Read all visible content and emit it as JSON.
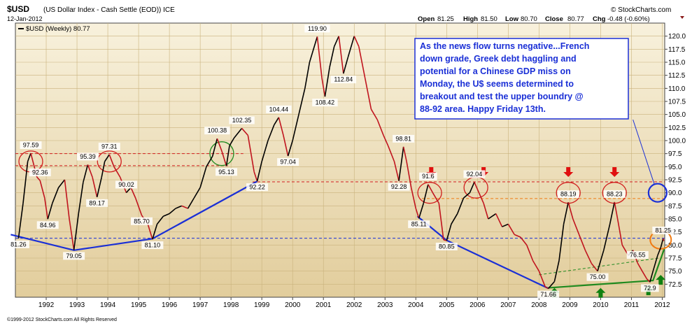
{
  "header": {
    "symbol": "$USD",
    "description": "(US Dollar Index - Cash Settle (EOD)) ICE",
    "date": "12-Jan-2012",
    "watermark": "© StockCharts.com",
    "open_label": "Open",
    "open": "81.25",
    "high_label": "High",
    "high": "81.50",
    "low_label": "Low",
    "low": "80.70",
    "close_label": "Close",
    "close": "80.77",
    "chg_label": "Chg",
    "chg": "-0.48 (-0.60%)"
  },
  "legend": {
    "label": "$USD (Weekly) 80.77"
  },
  "annotation": {
    "text_lines": [
      "As the news flow turns negative...French",
      "down grade, Greek debt haggling and",
      "potential for a Chinese GDP miss on",
      "Monday, the U$ seems determined to",
      "breakout and test the upper boundry @",
      "88-92 area. Happy Friday 13th."
    ]
  },
  "footer": {
    "copyright": "©1999-2012 StockCharts.com All Rights Reserved"
  },
  "colors": {
    "price_up": "#000000",
    "price_down": "#c0141e",
    "trendline": "#1a2fd6",
    "support_green": "#1f8a1f",
    "resistance_red": "#d01c1c",
    "annotation_text": "#1a2fd6",
    "arrow_red": "#e01010",
    "arrow_green": "#108010",
    "orange_circle": "#f07a10"
  },
  "chart_data": {
    "type": "line",
    "title": "$USD (US Dollar Index - Cash Settle (EOD)) ICE",
    "xlabel": "",
    "ylabel": "",
    "xlim": [
      1991.0,
      2012.08
    ],
    "ylim": [
      70.0,
      122.5
    ],
    "x_ticks": [
      "1992",
      "1993",
      "1994",
      "1995",
      "1996",
      "1997",
      "1998",
      "1999",
      "2000",
      "2001",
      "2002",
      "2003",
      "2004",
      "2005",
      "2006",
      "2007",
      "2008",
      "2009",
      "2010",
      "2011",
      "2012"
    ],
    "y_ticks": [
      "72.5",
      "75.0",
      "77.5",
      "80.0",
      "82.5",
      "85.0",
      "87.5",
      "90.0",
      "92.5",
      "95.0",
      "97.5",
      "100.0",
      "102.5",
      "105.0",
      "107.5",
      "110.0",
      "112.5",
      "115.0",
      "117.5",
      "120.0"
    ],
    "grid": true,
    "series": [
      {
        "name": "$USD (Weekly)",
        "points": [
          [
            1991.1,
            81.26
          ],
          [
            1991.25,
            88
          ],
          [
            1991.4,
            96
          ],
          [
            1991.5,
            97.59
          ],
          [
            1991.7,
            93
          ],
          [
            1991.8,
            92.36
          ],
          [
            1991.95,
            89
          ],
          [
            1992.05,
            84.96
          ],
          [
            1992.2,
            88
          ],
          [
            1992.4,
            91
          ],
          [
            1992.6,
            92.5
          ],
          [
            1992.75,
            85
          ],
          [
            1992.9,
            79.05
          ],
          [
            1993.05,
            86
          ],
          [
            1993.2,
            92
          ],
          [
            1993.35,
            95.39
          ],
          [
            1993.5,
            93
          ],
          [
            1993.65,
            89.17
          ],
          [
            1993.8,
            93
          ],
          [
            1993.9,
            96
          ],
          [
            1994.05,
            97.31
          ],
          [
            1994.2,
            95
          ],
          [
            1994.4,
            93
          ],
          [
            1994.6,
            90.02
          ],
          [
            1994.75,
            91
          ],
          [
            1994.9,
            89
          ],
          [
            1995.1,
            85.7
          ],
          [
            1995.3,
            84
          ],
          [
            1995.45,
            81.1
          ],
          [
            1995.6,
            84
          ],
          [
            1995.8,
            85.5
          ],
          [
            1996.0,
            86
          ],
          [
            1996.2,
            87
          ],
          [
            1996.4,
            87.5
          ],
          [
            1996.6,
            87
          ],
          [
            1996.8,
            89
          ],
          [
            1997.0,
            91
          ],
          [
            1997.2,
            95
          ],
          [
            1997.4,
            97
          ],
          [
            1997.55,
            100.38
          ],
          [
            1997.7,
            98
          ],
          [
            1997.85,
            95.13
          ],
          [
            1997.95,
            99
          ],
          [
            1998.1,
            100.5
          ],
          [
            1998.35,
            102.35
          ],
          [
            1998.55,
            101
          ],
          [
            1998.75,
            94
          ],
          [
            1998.85,
            92.22
          ],
          [
            1999.0,
            96
          ],
          [
            1999.2,
            100
          ],
          [
            1999.4,
            103
          ],
          [
            1999.55,
            104.44
          ],
          [
            1999.7,
            101
          ],
          [
            1999.85,
            97.04
          ],
          [
            2000.0,
            100
          ],
          [
            2000.2,
            105
          ],
          [
            2000.4,
            110
          ],
          [
            2000.55,
            115
          ],
          [
            2000.8,
            119.9
          ],
          [
            2000.95,
            112
          ],
          [
            2001.05,
            108.42
          ],
          [
            2001.2,
            114
          ],
          [
            2001.35,
            118
          ],
          [
            2001.5,
            120
          ],
          [
            2001.65,
            112.84
          ],
          [
            2001.8,
            116
          ],
          [
            2002.0,
            120
          ],
          [
            2002.15,
            118
          ],
          [
            2002.35,
            112
          ],
          [
            2002.55,
            106
          ],
          [
            2002.75,
            104
          ],
          [
            2002.95,
            101
          ],
          [
            2003.1,
            99
          ],
          [
            2003.3,
            96
          ],
          [
            2003.45,
            92.28
          ],
          [
            2003.6,
            98.81
          ],
          [
            2003.7,
            96
          ],
          [
            2003.85,
            91
          ],
          [
            2004.0,
            87
          ],
          [
            2004.1,
            85.11
          ],
          [
            2004.25,
            88
          ],
          [
            2004.4,
            91.6
          ],
          [
            2004.55,
            90
          ],
          [
            2004.75,
            88
          ],
          [
            2004.9,
            81
          ],
          [
            2005.0,
            80.85
          ],
          [
            2005.15,
            84
          ],
          [
            2005.35,
            86
          ],
          [
            2005.55,
            89
          ],
          [
            2005.75,
            90
          ],
          [
            2005.9,
            92.04
          ],
          [
            2006.05,
            90
          ],
          [
            2006.2,
            88
          ],
          [
            2006.35,
            85
          ],
          [
            2006.6,
            86
          ],
          [
            2006.8,
            83.5
          ],
          [
            2007.0,
            84
          ],
          [
            2007.2,
            82
          ],
          [
            2007.4,
            81.5
          ],
          [
            2007.6,
            80
          ],
          [
            2007.8,
            77
          ],
          [
            2008.0,
            75
          ],
          [
            2008.2,
            72
          ],
          [
            2008.3,
            71.66
          ],
          [
            2008.5,
            73
          ],
          [
            2008.65,
            77
          ],
          [
            2008.8,
            84
          ],
          [
            2008.95,
            88.19
          ],
          [
            2009.1,
            85
          ],
          [
            2009.3,
            82
          ],
          [
            2009.5,
            79
          ],
          [
            2009.7,
            76.5
          ],
          [
            2009.9,
            75
          ],
          [
            2010.1,
            79
          ],
          [
            2010.3,
            84
          ],
          [
            2010.45,
            88.23
          ],
          [
            2010.55,
            85
          ],
          [
            2010.7,
            80
          ],
          [
            2010.9,
            78
          ],
          [
            2011.05,
            79
          ],
          [
            2011.2,
            76.55
          ],
          [
            2011.35,
            75
          ],
          [
            2011.5,
            73.5
          ],
          [
            2011.6,
            72.9
          ],
          [
            2011.7,
            75
          ],
          [
            2011.85,
            78
          ],
          [
            2011.95,
            79.5
          ],
          [
            2012.03,
            81.25
          ],
          [
            2012.05,
            80.77
          ]
        ]
      }
    ],
    "labels": [
      {
        "x": 1991.1,
        "y": 81.26,
        "text": "81.26",
        "pos": "below"
      },
      {
        "x": 1991.5,
        "y": 97.59,
        "text": "97.59",
        "pos": "above"
      },
      {
        "x": 1991.8,
        "y": 92.36,
        "text": "92.36",
        "pos": "above"
      },
      {
        "x": 1992.05,
        "y": 84.96,
        "text": "84.96",
        "pos": "below"
      },
      {
        "x": 1992.9,
        "y": 79.05,
        "text": "79.05",
        "pos": "below"
      },
      {
        "x": 1993.35,
        "y": 95.39,
        "text": "95.39",
        "pos": "above"
      },
      {
        "x": 1993.65,
        "y": 89.17,
        "text": "89.17",
        "pos": "below"
      },
      {
        "x": 1994.05,
        "y": 97.31,
        "text": "97.31",
        "pos": "above"
      },
      {
        "x": 1994.6,
        "y": 90.02,
        "text": "90.02",
        "pos": "above"
      },
      {
        "x": 1995.1,
        "y": 85.7,
        "text": "85.70",
        "pos": "below"
      },
      {
        "x": 1995.45,
        "y": 81.1,
        "text": "81.10",
        "pos": "below"
      },
      {
        "x": 1997.55,
        "y": 100.38,
        "text": "100.38",
        "pos": "above"
      },
      {
        "x": 1997.85,
        "y": 95.13,
        "text": "95.13",
        "pos": "below"
      },
      {
        "x": 1998.35,
        "y": 102.35,
        "text": "102.35",
        "pos": "above"
      },
      {
        "x": 1998.85,
        "y": 92.22,
        "text": "92.22",
        "pos": "below"
      },
      {
        "x": 1999.55,
        "y": 104.44,
        "text": "104.44",
        "pos": "above"
      },
      {
        "x": 1999.85,
        "y": 97.04,
        "text": "97.04",
        "pos": "below"
      },
      {
        "x": 2000.8,
        "y": 119.9,
        "text": "119.90",
        "pos": "above"
      },
      {
        "x": 2001.05,
        "y": 108.42,
        "text": "108.42",
        "pos": "below"
      },
      {
        "x": 2001.65,
        "y": 112.84,
        "text": "112.84",
        "pos": "below"
      },
      {
        "x": 2003.45,
        "y": 92.28,
        "text": "92.28",
        "pos": "below"
      },
      {
        "x": 2003.6,
        "y": 98.81,
        "text": "98.81",
        "pos": "above"
      },
      {
        "x": 2004.1,
        "y": 85.11,
        "text": "85.11",
        "pos": "below"
      },
      {
        "x": 2004.4,
        "y": 91.6,
        "text": "91.6",
        "pos": "above"
      },
      {
        "x": 2005.0,
        "y": 80.85,
        "text": "80.85",
        "pos": "below"
      },
      {
        "x": 2005.9,
        "y": 92.04,
        "text": "92.04",
        "pos": "above"
      },
      {
        "x": 2008.3,
        "y": 71.66,
        "text": "71.66",
        "pos": "below"
      },
      {
        "x": 2008.95,
        "y": 88.19,
        "text": "88.19",
        "pos": "above"
      },
      {
        "x": 2009.9,
        "y": 75.0,
        "text": "75.00",
        "pos": "below"
      },
      {
        "x": 2010.45,
        "y": 88.23,
        "text": "88.23",
        "pos": "above"
      },
      {
        "x": 2011.2,
        "y": 76.55,
        "text": "76.55",
        "pos": "above"
      },
      {
        "x": 2011.6,
        "y": 72.9,
        "text": "72.9",
        "pos": "below"
      },
      {
        "x": 2012.03,
        "y": 81.25,
        "text": "81.25",
        "pos": "above"
      }
    ],
    "trendlines_blue": [
      [
        [
          1990.85,
          82.0
        ],
        [
          1992.9,
          79.0
        ],
        [
          1995.45,
          81.2
        ],
        [
          1998.85,
          92.2
        ]
      ],
      [
        [
          2004.05,
          85.5
        ],
        [
          2005.0,
          80.9
        ],
        [
          2008.3,
          71.7
        ]
      ]
    ],
    "trendlines_green": [
      [
        [
          2008.3,
          71.8
        ],
        [
          2011.7,
          73.2
        ],
        [
          2012.08,
          79.5
        ]
      ]
    ],
    "dashed_green": [
      [
        2008.0,
        74.3
      ],
      [
        2011.9,
        77.5
      ]
    ],
    "h_lines_red": [
      {
        "y": 97.5,
        "x1": 1991.0,
        "x2": 1998.4
      },
      {
        "y": 95.2,
        "x1": 1991.0,
        "x2": 1997.9
      },
      {
        "y": 92.1,
        "x1": 1998.7,
        "x2": 2012.08
      }
    ],
    "h_lines_orange": [
      {
        "y": 88.9,
        "x1": 2004.2,
        "x2": 2012.08
      }
    ],
    "h_lines_blue": [
      {
        "y": 81.3,
        "x1": 1991.0,
        "x2": 2012.08
      }
    ],
    "circles_red": [
      [
        1991.5,
        96.0
      ],
      [
        1994.05,
        96.0
      ],
      [
        2004.45,
        90.0
      ],
      [
        2005.95,
        91.0
      ],
      [
        2008.95,
        90.0
      ],
      [
        2010.45,
        90.0
      ]
    ],
    "circles_green": [
      [
        1997.7,
        97.5
      ]
    ],
    "circles_orange": [
      [
        2011.95,
        81.0
      ]
    ],
    "circles_blue": [
      [
        2011.85,
        90.0
      ]
    ],
    "arrows_red": [
      [
        2004.5,
        93.3
      ],
      [
        2006.2,
        93.3
      ],
      [
        2008.95,
        93.3
      ],
      [
        2010.45,
        93.3
      ]
    ],
    "arrows_green": [
      [
        2008.5,
        71.5
      ],
      [
        2010.0,
        71.5
      ],
      [
        2011.55,
        72.0
      ],
      [
        2011.95,
        74.0
      ]
    ],
    "blue_pointer": [
      [
        2011.05,
        104.0
      ],
      [
        2011.75,
        91.5
      ]
    ]
  }
}
